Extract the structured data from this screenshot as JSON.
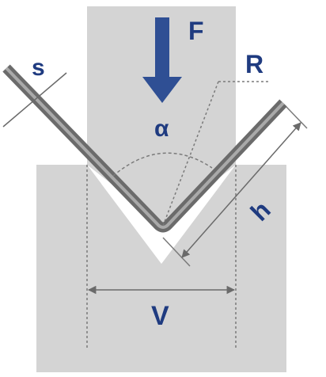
{
  "labels": {
    "force": "F",
    "radius": "R",
    "thickness": "s",
    "angle": "α",
    "flange_height": "h",
    "die_opening": "V"
  },
  "colors": {
    "tool": "#d4d4d4",
    "sheet_dark": "#6b6b6b",
    "sheet_light": "#a9a9a9",
    "label": "#1f3b80",
    "arrow": "#2f4f94",
    "dimension_line": "#6a6a6a",
    "background": "#ffffff"
  }
}
